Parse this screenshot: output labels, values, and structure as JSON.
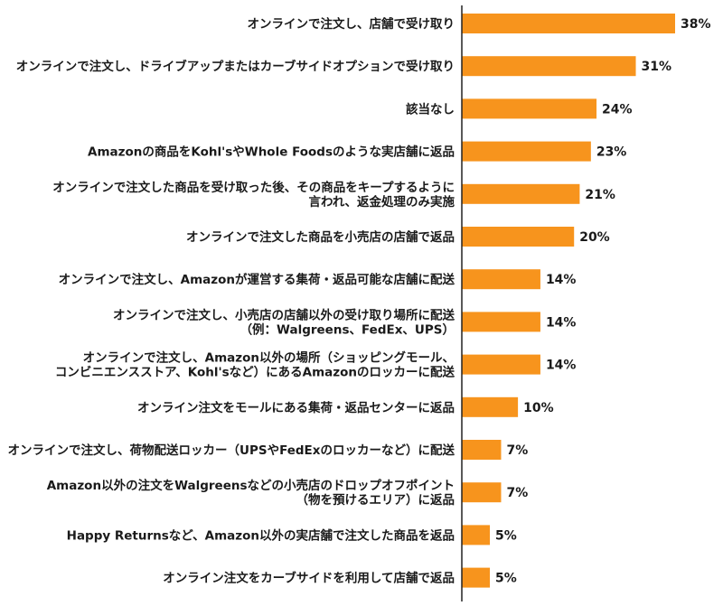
{
  "chart_data": {
    "type": "bar",
    "orientation": "horizontal",
    "value_suffix": "%",
    "bar_color": "#f7941d",
    "axis_color": "#222222",
    "categories": [
      [
        "オンラインで注文し、店舗で受け取り"
      ],
      [
        "オンラインで注文し、ドライブアップまたはカーブサイドオプションで受け取り"
      ],
      [
        "該当なし"
      ],
      [
        "Amazonの商品をKohl'sやWhole Foodsのような実店舗に返品"
      ],
      [
        "オンラインで注文した商品を受け取った後、その商品をキープするように",
        "言われ、返金処理のみ実施"
      ],
      [
        "オンラインで注文した商品を小売店の店舗で返品"
      ],
      [
        "オンラインで注文し、Amazonが運営する集荷・返品可能な店舗に配送"
      ],
      [
        "オンラインで注文し、小売店の店舗以外の受け取り場所に配送",
        "（例：Walgreens、FedEx、UPS）"
      ],
      [
        "オンラインで注文し、Amazon以外の場所（ショッピングモール、",
        "コンビニエンスストア、Kohl'sなど）にあるAmazonのロッカーに配送"
      ],
      [
        "オンライン注文をモールにある集荷・返品センターに返品"
      ],
      [
        "オンラインで注文し、荷物配送ロッカー（UPSやFedExのロッカーなど）に配送"
      ],
      [
        "Amazon以外の注文をWalgreensなどの小売店のドロップオフポイント",
        "（物を預けるエリア）に返品"
      ],
      [
        "Happy Returnsなど、Amazon以外の実店舗で注文した商品を返品"
      ],
      [
        "オンライン注文をカーブサイドを利用して店舗で返品"
      ]
    ],
    "values": [
      38,
      31,
      24,
      23,
      21,
      20,
      14,
      14,
      14,
      10,
      7,
      7,
      5,
      5
    ],
    "xlim": [
      0,
      40
    ]
  }
}
